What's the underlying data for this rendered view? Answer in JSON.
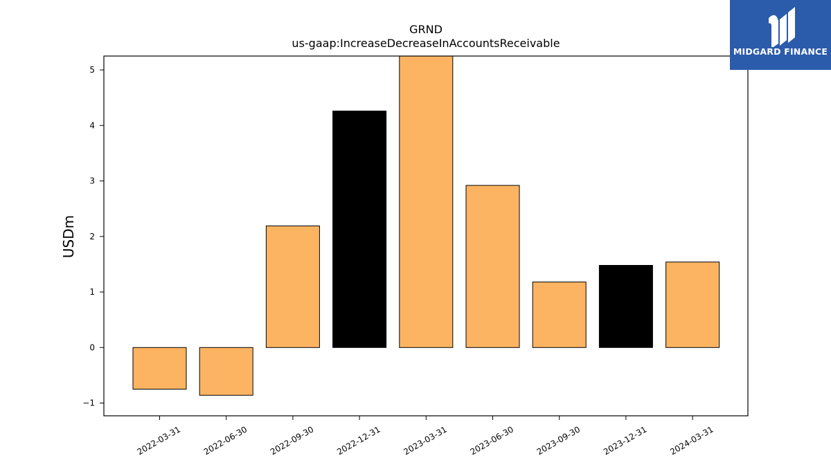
{
  "logo": {
    "text": "MIDGARD FINANCE",
    "bg_color": "#2b5bab"
  },
  "chart_data": {
    "type": "bar",
    "title": "GRND",
    "subtitle": "us-gaap:IncreaseDecreaseInAccountsReceivable",
    "ylabel": "USDm",
    "xlabel": "",
    "ylim": [
      -1.23,
      5.25
    ],
    "yticks": [
      -1,
      0,
      1,
      2,
      3,
      4,
      5
    ],
    "ytick_labels": [
      "−1",
      "0",
      "1",
      "2",
      "3",
      "4",
      "5"
    ],
    "grid": false,
    "categories": [
      "2022-03-31",
      "2022-06-30",
      "2022-09-30",
      "2022-12-31",
      "2023-03-31",
      "2023-06-30",
      "2023-09-30",
      "2023-12-31",
      "2024-03-31"
    ],
    "values": [
      -0.75,
      -0.86,
      2.19,
      4.26,
      5.3,
      2.92,
      1.18,
      1.48,
      1.54
    ],
    "bar_colors": [
      "#fdb462",
      "#fdb462",
      "#fdb462",
      "#000000",
      "#fdb462",
      "#fdb462",
      "#fdb462",
      "#000000",
      "#fdb462"
    ],
    "colors": {
      "primary": "#fdb462",
      "highlight": "#000000"
    }
  }
}
